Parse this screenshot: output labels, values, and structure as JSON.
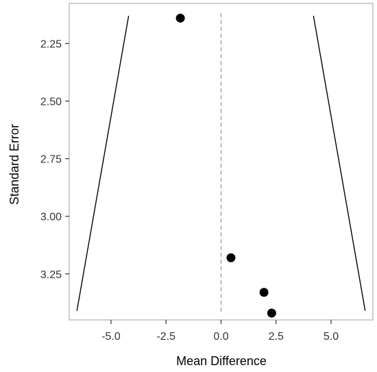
{
  "chart_data": {
    "type": "scatter",
    "title": "",
    "xlabel": "Mean Difference",
    "ylabel": "Standard Error",
    "xlim": [
      -6.9,
      6.9
    ],
    "ylim": [
      2.1,
      3.42
    ],
    "y_reversed": true,
    "xticks": [
      {
        "value": -5.0,
        "label": "-5.0"
      },
      {
        "value": -2.5,
        "label": "-2.5"
      },
      {
        "value": 0.0,
        "label": "0.0"
      },
      {
        "value": 2.5,
        "label": "2.5"
      },
      {
        "value": 5.0,
        "label": "5.0"
      }
    ],
    "yticks": [
      {
        "value": 2.25,
        "label": "2.25"
      },
      {
        "value": 2.5,
        "label": "2.50"
      },
      {
        "value": 2.75,
        "label": "2.75"
      },
      {
        "value": 3.0,
        "label": "3.00"
      },
      {
        "value": 3.25,
        "label": "3.25"
      }
    ],
    "points": [
      {
        "x": -1.85,
        "y": 2.14
      },
      {
        "x": 0.45,
        "y": 3.18
      },
      {
        "x": 1.95,
        "y": 3.33
      },
      {
        "x": 2.3,
        "y": 3.42
      }
    ],
    "reference_line": {
      "x": 0.0,
      "style": "dashed"
    },
    "funnel": {
      "left": [
        {
          "x": -4.2,
          "y": 2.13
        },
        {
          "x": -6.55,
          "y": 3.41
        }
      ],
      "right": [
        {
          "x": 4.2,
          "y": 2.13
        },
        {
          "x": 6.55,
          "y": 3.41
        }
      ]
    },
    "grid": false,
    "colors": {
      "points": "#000000",
      "funnel": "#000000",
      "reference": "#999999",
      "frame": "#b3b3b3"
    }
  }
}
